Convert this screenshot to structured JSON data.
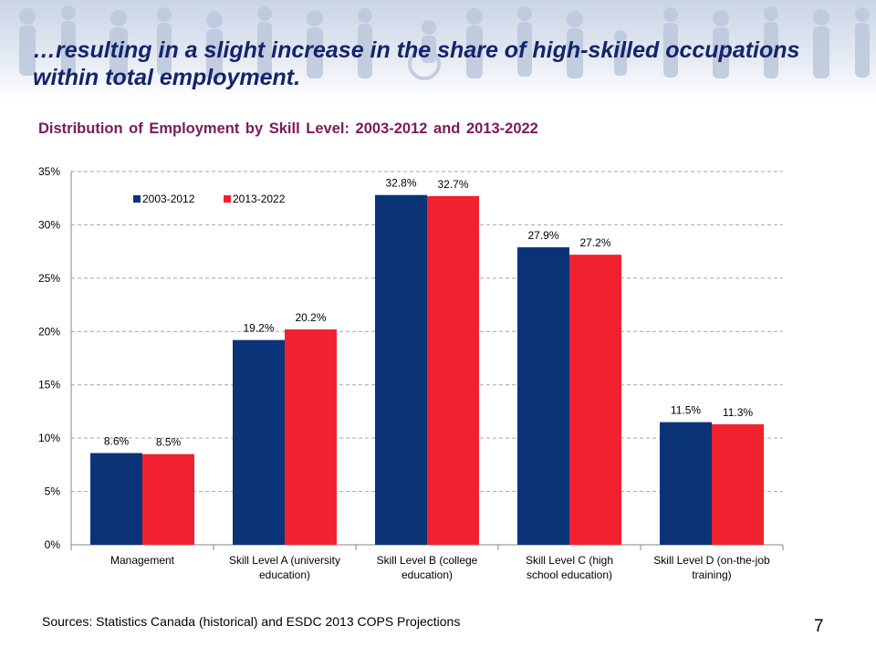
{
  "slide": {
    "title": "…resulting in a slight increase in the share of high-skilled occupations within total employment.",
    "source": "Sources: Statistics Canada (historical) and ESDC 2013 COPS Projections",
    "page_number": "7"
  },
  "colors": {
    "series1": "#0b3478",
    "series2": "#f1212f",
    "title": "#14246b",
    "chart_title": "#7a1a5e"
  },
  "chart_data": {
    "type": "bar",
    "title": "Distribution  of Employment by Skill Level: 2003-2012 and 2013-2022",
    "categories": [
      [
        "Management"
      ],
      [
        "Skill Level A (university",
        "education)"
      ],
      [
        "Skill Level B (college",
        "education)"
      ],
      [
        "Skill Level C (high",
        "school education)"
      ],
      [
        "Skill Level D (on-the-job",
        "training)"
      ]
    ],
    "series": [
      {
        "name": "2003-2012",
        "values": [
          8.6,
          19.2,
          32.8,
          27.9,
          11.5
        ],
        "labels": [
          "8.6%",
          "19.2%",
          "32.8%",
          "27.9%",
          "11.5%"
        ]
      },
      {
        "name": "2013-2022",
        "values": [
          8.5,
          20.2,
          32.7,
          27.2,
          11.3
        ],
        "labels": [
          "8.5%",
          "20.2%",
          "32.7%",
          "27.2%",
          "11.3%"
        ]
      }
    ],
    "ylim": [
      0,
      35
    ],
    "yticks": [
      "0%",
      "5%",
      "10%",
      "15%",
      "20%",
      "25%",
      "30%",
      "35%"
    ],
    "grid": true,
    "legend": "top-left"
  }
}
